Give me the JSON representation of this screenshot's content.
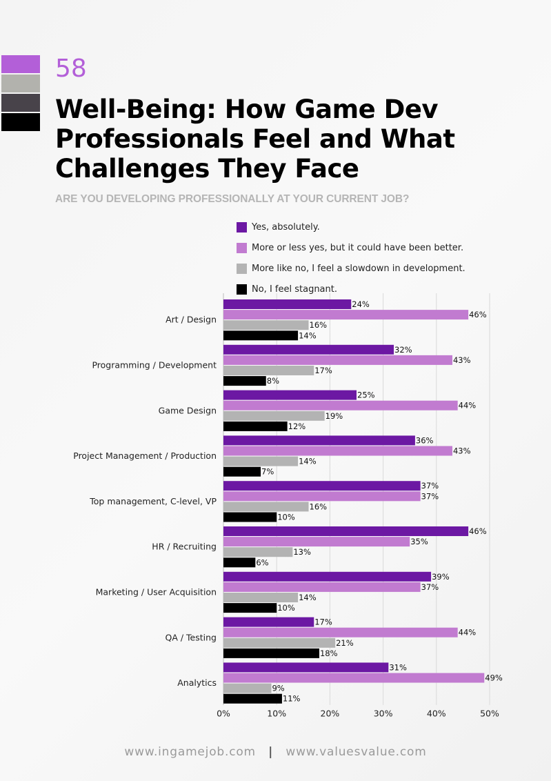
{
  "page": {
    "number": "58",
    "title": "Well-Being: How Game Dev Professionals Feel and What Challenges They Face",
    "swatches": [
      "#b35fd8",
      "#b2b2ad",
      "#48434a",
      "#000000"
    ]
  },
  "chart_data": {
    "type": "bar",
    "orientation": "horizontal",
    "title": "ARE YOU DEVELOPING PROFESSIONALLY AT YOUR CURRENT JOB?",
    "categories": [
      "Art / Design",
      "Programming / Development",
      "Game Design",
      "Project Management / Production",
      "Top management, C-level, VP",
      "HR / Recruiting",
      "Marketing / User Acquisition",
      "QA / Testing",
      "Analytics"
    ],
    "series": [
      {
        "name": "Yes, absolutely.",
        "color": "#6c18a3",
        "values": [
          24,
          32,
          25,
          36,
          37,
          46,
          39,
          17,
          31
        ]
      },
      {
        "name": "More or less yes, but it could have been better.",
        "color": "#c17bd0",
        "values": [
          46,
          43,
          44,
          43,
          37,
          35,
          37,
          44,
          49
        ]
      },
      {
        "name": "More like no, I feel a slowdown in development.",
        "color": "#b3b3b3",
        "values": [
          16,
          17,
          19,
          14,
          16,
          13,
          14,
          21,
          9
        ]
      },
      {
        "name": "No, I feel stagnant.",
        "color": "#000000",
        "values": [
          14,
          8,
          12,
          7,
          10,
          6,
          10,
          18,
          11
        ]
      }
    ],
    "xlim": [
      0,
      50
    ],
    "xticks": [
      "0%",
      "10%",
      "20%",
      "30%",
      "40%",
      "50%"
    ],
    "value_suffix": "%",
    "grid": true,
    "legend_position": "top"
  },
  "footer": {
    "left": "www.ingamejob.com",
    "separator": "|",
    "right": "www.valuesvalue.com"
  }
}
